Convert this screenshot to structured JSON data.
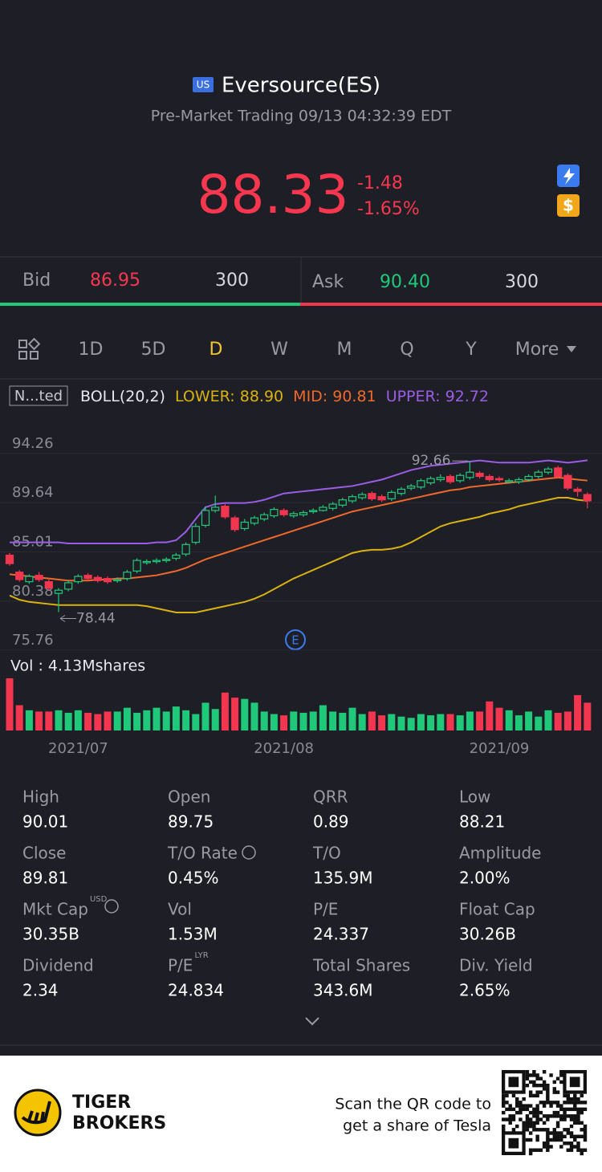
{
  "header": {
    "badge": "US",
    "name": "Eversource(ES)",
    "status": "Pre-Market Trading 09/13 04:32:39 EDT"
  },
  "quote": {
    "price": "88.33",
    "change": "-1.48",
    "change_pct": "-1.65%"
  },
  "bid": {
    "label": "Bid",
    "price": "86.95",
    "size": "300"
  },
  "ask": {
    "label": "Ask",
    "price": "90.40",
    "size": "300"
  },
  "tabs": [
    "1D",
    "5D",
    "D",
    "W",
    "M",
    "Q",
    "Y",
    "More"
  ],
  "indicator": {
    "name": "N...ted",
    "boll": "BOLL(20,2)",
    "lower": "LOWER: 88.90",
    "mid": "MID: 90.81",
    "upper": "UPPER: 92.72"
  },
  "chart_data": {
    "type": "candlestick",
    "up_color": "#20c97a",
    "down_color": "#f3364f",
    "ylim": [
      75.76,
      94.26
    ],
    "yticks": [
      94.26,
      89.64,
      85.01,
      80.38,
      75.76
    ],
    "categories": [
      null,
      null,
      null,
      null,
      null,
      null,
      null,
      "2021/07",
      null,
      null,
      null,
      null,
      null,
      null,
      null,
      null,
      null,
      null,
      null,
      null,
      null,
      null,
      null,
      null,
      null,
      null,
      null,
      null,
      "2021/08",
      null,
      null,
      null,
      null,
      null,
      null,
      null,
      null,
      null,
      null,
      null,
      null,
      null,
      null,
      null,
      null,
      null,
      null,
      null,
      null,
      null,
      "2021/09",
      null,
      null,
      null,
      null,
      null,
      null,
      null,
      null,
      null
    ],
    "open": [
      83.8,
      82.2,
      81.3,
      81.9,
      81.3,
      80.2,
      80.6,
      81.3,
      81.9,
      81.7,
      81.6,
      81.4,
      81.6,
      82.3,
      83.1,
      83.2,
      83.3,
      83.5,
      83.9,
      85.0,
      86.6,
      88.0,
      88.4,
      87.3,
      86.3,
      86.8,
      87.2,
      87.5,
      88.0,
      87.5,
      87.6,
      87.9,
      88.0,
      88.2,
      88.5,
      88.9,
      89.2,
      89.6,
      89.3,
      89.1,
      89.6,
      90.1,
      90.2,
      90.6,
      90.9,
      91.2,
      90.8,
      91.1,
      91.5,
      91.2,
      91.0,
      90.8,
      90.7,
      90.9,
      91.2,
      91.6,
      92.0,
      91.3,
      90.0,
      89.5
    ],
    "high": [
      84.0,
      82.4,
      82.0,
      82.2,
      81.5,
      80.7,
      81.4,
      82.0,
      82.1,
      81.9,
      81.8,
      81.7,
      82.4,
      83.5,
      83.4,
      83.5,
      83.6,
      84.0,
      85.0,
      86.8,
      88.4,
      89.4,
      88.6,
      87.5,
      87.2,
      87.5,
      87.8,
      88.3,
      88.2,
      87.9,
      88.0,
      88.2,
      88.5,
      88.8,
      89.2,
      89.5,
      89.7,
      89.8,
      89.5,
      89.9,
      90.2,
      90.5,
      91.0,
      91.2,
      91.4,
      91.4,
      91.5,
      92.66,
      91.7,
      91.4,
      91.2,
      91.0,
      91.1,
      91.4,
      91.8,
      92.1,
      92.2,
      91.5,
      90.2,
      89.7
    ],
    "low": [
      82.8,
      81.3,
      81.1,
      81.3,
      80.5,
      78.44,
      80.4,
      81.1,
      81.4,
      81.2,
      81.1,
      81.2,
      81.4,
      82.1,
      82.9,
      83.0,
      83.1,
      83.3,
      83.7,
      84.8,
      86.4,
      87.8,
      87.2,
      86.0,
      86.1,
      86.6,
      87.0,
      87.3,
      87.4,
      87.3,
      87.4,
      87.7,
      87.9,
      88.0,
      88.3,
      88.7,
      89.0,
      88.9,
      88.8,
      88.9,
      89.4,
      89.9,
      90.0,
      90.4,
      90.7,
      90.5,
      90.6,
      90.9,
      91.0,
      90.7,
      90.7,
      90.6,
      90.5,
      90.7,
      91.0,
      91.4,
      91.0,
      89.9,
      89.3,
      88.2
    ],
    "close": [
      83.0,
      81.5,
      81.8,
      81.5,
      80.7,
      80.5,
      81.2,
      81.8,
      81.6,
      81.4,
      81.3,
      81.5,
      82.2,
      83.3,
      83.2,
      83.3,
      83.4,
      83.8,
      84.8,
      86.5,
      88.0,
      88.3,
      87.4,
      86.2,
      86.9,
      87.3,
      87.6,
      88.1,
      87.6,
      87.7,
      87.8,
      88.0,
      88.3,
      88.6,
      89.0,
      89.3,
      89.5,
      89.1,
      89.0,
      89.7,
      90.0,
      90.3,
      90.8,
      91.0,
      91.1,
      90.7,
      91.3,
      91.6,
      91.2,
      90.9,
      90.9,
      90.8,
      90.9,
      91.2,
      91.6,
      91.9,
      91.2,
      90.1,
      89.8,
      88.9
    ],
    "bands": [
      {
        "color": "#9b5de5",
        "values": [
          85.0,
          85.0,
          85.0,
          85.0,
          85.0,
          85.0,
          84.9,
          84.9,
          84.9,
          84.9,
          84.9,
          84.9,
          84.9,
          84.9,
          84.9,
          85.0,
          85.0,
          85.2,
          86.0,
          87.2,
          88.3,
          88.6,
          88.7,
          88.7,
          88.7,
          88.8,
          89.0,
          89.3,
          89.6,
          89.7,
          89.8,
          89.9,
          90.0,
          90.1,
          90.2,
          90.3,
          90.5,
          90.7,
          90.9,
          91.2,
          91.5,
          91.8,
          92.0,
          92.2,
          92.3,
          92.4,
          92.5,
          92.6,
          92.7,
          92.6,
          92.5,
          92.5,
          92.5,
          92.5,
          92.6,
          92.7,
          92.6,
          92.5,
          92.6,
          92.72
        ]
      },
      {
        "color": "#f0692a",
        "values": [
          82.0,
          81.9,
          81.8,
          81.7,
          81.6,
          81.5,
          81.4,
          81.4,
          81.4,
          81.5,
          81.5,
          81.6,
          81.6,
          81.7,
          81.8,
          81.9,
          82.1,
          82.3,
          82.6,
          83.0,
          83.4,
          83.7,
          84.0,
          84.3,
          84.6,
          84.9,
          85.2,
          85.5,
          85.8,
          86.1,
          86.4,
          86.7,
          87.0,
          87.3,
          87.6,
          87.9,
          88.1,
          88.3,
          88.5,
          88.7,
          88.9,
          89.1,
          89.3,
          89.5,
          89.7,
          89.9,
          90.0,
          90.2,
          90.3,
          90.4,
          90.5,
          90.6,
          90.7,
          90.8,
          90.9,
          91.0,
          91.1,
          91.0,
          90.9,
          90.81
        ]
      },
      {
        "color": "#d9b20f",
        "values": [
          80.0,
          79.6,
          79.4,
          79.3,
          79.2,
          79.1,
          79.1,
          79.1,
          79.1,
          79.1,
          79.1,
          79.1,
          79.1,
          79.1,
          79.0,
          78.8,
          78.6,
          78.4,
          78.4,
          78.4,
          78.6,
          78.8,
          79.0,
          79.2,
          79.4,
          79.7,
          80.1,
          80.6,
          81.1,
          81.6,
          82.0,
          82.4,
          82.8,
          83.2,
          83.6,
          84.0,
          84.2,
          84.3,
          84.3,
          84.4,
          84.6,
          85.0,
          85.5,
          86.0,
          86.5,
          86.8,
          87.0,
          87.2,
          87.4,
          87.7,
          87.9,
          88.1,
          88.4,
          88.6,
          88.8,
          89.0,
          89.2,
          89.2,
          89.0,
          88.9
        ]
      }
    ],
    "volume": {
      "label": "Vol  : 4.13Mshares",
      "ylim": [
        0,
        4.13
      ],
      "values": [
        4.13,
        2.0,
        1.6,
        1.5,
        1.5,
        1.6,
        1.4,
        1.6,
        1.4,
        1.3,
        1.5,
        1.5,
        1.8,
        1.4,
        1.6,
        1.8,
        1.5,
        1.9,
        1.6,
        1.3,
        2.2,
        1.7,
        3.0,
        2.6,
        2.5,
        2.2,
        1.5,
        1.3,
        1.2,
        1.5,
        1.4,
        1.5,
        2.0,
        1.5,
        1.4,
        1.8,
        1.3,
        1.5,
        1.2,
        1.3,
        1.1,
        1.0,
        1.3,
        1.2,
        1.3,
        1.3,
        1.2,
        1.5,
        1.5,
        2.3,
        1.8,
        1.6,
        1.2,
        1.5,
        1.1,
        1.6,
        1.4,
        1.5,
        2.8,
        2.2
      ]
    }
  },
  "stats": [
    {
      "label": "High",
      "value": "90.01"
    },
    {
      "label": "Open",
      "value": "89.75"
    },
    {
      "label": "QRR",
      "value": "0.89"
    },
    {
      "label": "Low",
      "value": "88.21"
    },
    {
      "label": "Close",
      "value": "89.81"
    },
    {
      "label": "T/O Rate",
      "value": "0.45%"
    },
    {
      "label": "T/O",
      "value": "135.9M"
    },
    {
      "label": "Amplitude",
      "value": "2.00%"
    },
    {
      "label": "Mkt Cap",
      "sup": "USD",
      "value": "30.35B"
    },
    {
      "label": "Vol",
      "value": "1.53M"
    },
    {
      "label": "P/E",
      "value": "24.337"
    },
    {
      "label": "Float Cap",
      "value": "30.26B"
    },
    {
      "label": "Dividend",
      "value": "2.34"
    },
    {
      "label": "P/E",
      "sup": "LYR",
      "value": "24.834"
    },
    {
      "label": "Total Shares",
      "value": "343.6M"
    },
    {
      "label": "Div. Yield",
      "value": "2.65%"
    }
  ],
  "footer": {
    "brand_line1": "TIGER",
    "brand_line2": "BROKERS",
    "scan_line1": "Scan the QR code to",
    "scan_line2": "get a share of Tesla"
  }
}
